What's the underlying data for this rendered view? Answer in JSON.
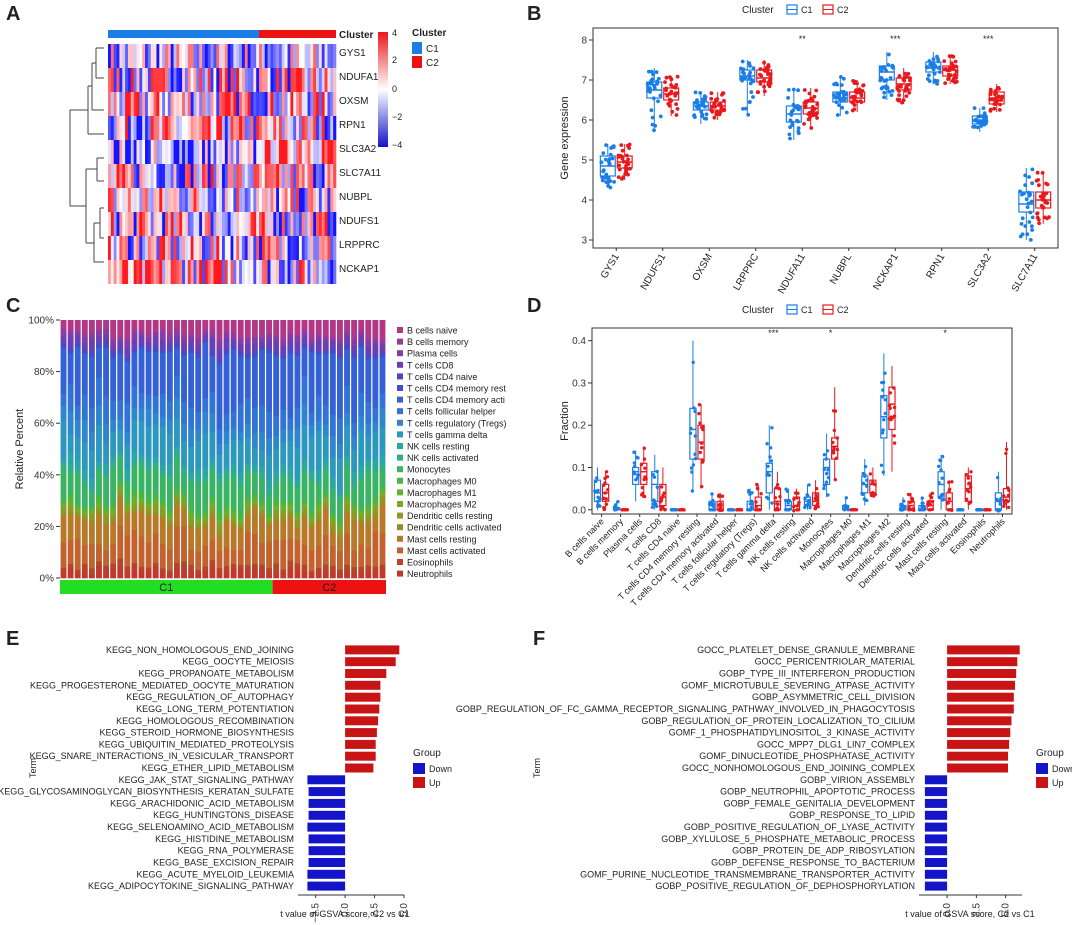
{
  "panels": {
    "A": "A",
    "B": "B",
    "C": "C",
    "D": "D",
    "E": "E",
    "F": "F"
  },
  "colors": {
    "c1": "#1a7ee6",
    "c2": "#e8191d",
    "down": "#1414c8",
    "up": "#c81414",
    "green": "#22dd22",
    "red": "#ee1111"
  },
  "panel_a": {
    "header": "Cluster",
    "genes": [
      "GYS1",
      "NDUFA11",
      "OXSM",
      "RPN1",
      "SLC3A2",
      "SLC7A11",
      "NUBPL",
      "NDUFS1",
      "LRPPRC",
      "NCKAP1"
    ],
    "scale_ticks": [
      "4",
      "2",
      "0",
      "−2",
      "−4"
    ],
    "legend_title": "Cluster",
    "legend_items": [
      "C1",
      "C2"
    ]
  },
  "chart_data": [
    {
      "type": "box",
      "panel": "B",
      "title": "",
      "legend_title": "Cluster",
      "series_names": [
        "C1",
        "C2"
      ],
      "categories": [
        "GYS1",
        "NDUFS1",
        "OXSM",
        "LRPPRC",
        "NDUFA11",
        "NUBPL",
        "NCKAP1",
        "RPN1",
        "SLC3A2",
        "SLC7A11"
      ],
      "ylabel": "Gene expression",
      "ylim": [
        2.8,
        8.3
      ],
      "yticks": [
        "3",
        "4",
        "5",
        "6",
        "7",
        "8"
      ],
      "significance": [
        "",
        "",
        "",
        "",
        "**",
        "",
        "***",
        "",
        "***",
        ""
      ],
      "boxes": {
        "C1": [
          [
            4.6,
            4.85,
            5.1,
            4.3,
            5.4
          ],
          [
            6.55,
            6.75,
            6.95,
            5.7,
            7.3
          ],
          [
            6.25,
            6.35,
            6.45,
            5.9,
            6.7
          ],
          [
            7.0,
            7.1,
            7.25,
            6.1,
            7.5
          ],
          [
            5.95,
            6.15,
            6.35,
            5.5,
            6.8
          ],
          [
            6.45,
            6.55,
            6.7,
            6.1,
            7.1
          ],
          [
            7.0,
            7.2,
            7.35,
            6.5,
            7.7
          ],
          [
            7.2,
            7.3,
            7.45,
            6.9,
            7.7
          ],
          [
            5.9,
            6.0,
            6.1,
            5.7,
            6.3
          ],
          [
            3.7,
            3.9,
            4.2,
            3.0,
            4.8
          ]
        ],
        "C2": [
          [
            4.8,
            4.95,
            5.1,
            4.5,
            5.4
          ],
          [
            6.5,
            6.65,
            6.8,
            6.1,
            7.1
          ],
          [
            6.25,
            6.35,
            6.45,
            6.0,
            6.7
          ],
          [
            6.95,
            7.05,
            7.25,
            6.6,
            7.5
          ],
          [
            6.15,
            6.3,
            6.45,
            5.8,
            6.8
          ],
          [
            6.45,
            6.55,
            6.7,
            6.2,
            7.0
          ],
          [
            6.75,
            6.9,
            7.05,
            6.4,
            7.3
          ],
          [
            7.1,
            7.25,
            7.35,
            6.9,
            7.6
          ],
          [
            6.4,
            6.55,
            6.7,
            6.2,
            6.9
          ],
          [
            3.8,
            4.0,
            4.2,
            3.4,
            4.7
          ]
        ]
      }
    },
    {
      "type": "stacked-bar",
      "panel": "C",
      "ylabel": "Relative Percent",
      "yticks": [
        "0%",
        "20%",
        "40%",
        "60%",
        "80%",
        "100%"
      ],
      "groups": [
        {
          "name": "C1",
          "count": 30
        },
        {
          "name": "C2",
          "count": 16
        }
      ],
      "cell_types": [
        "B cells naive",
        "B cells memory",
        "Plasma cells",
        "T cells CD8",
        "T cells CD4 naive",
        "T cells CD4 memory rest",
        "T cells CD4 memory acti",
        "T cells follicular helper",
        "T cells regulatory (Tregs)",
        "T cells gamma delta",
        "NK cells resting",
        "NK cells activated",
        "Monocytes",
        "Macrophages M0",
        "Macrophages M1",
        "Macrophages M2",
        "Dendritic cells resting",
        "Dendritic cells activated",
        "Mast cells resting",
        "Mast cells activated",
        "Eosinophils",
        "Neutrophils"
      ],
      "mean_percent": [
        3,
        2,
        10,
        8,
        1,
        2,
        1,
        1,
        2,
        9,
        2,
        3,
        11,
        6,
        8,
        18,
        1,
        1,
        3,
        2,
        1,
        5
      ],
      "type_colors": [
        "#c0392b",
        "#b5452a",
        "#c2622e",
        "#b87a2a",
        "#9c8a26",
        "#8c9a25",
        "#7aa82a",
        "#66b22e",
        "#4cb440",
        "#3bb364",
        "#32ae86",
        "#2ea5a5",
        "#2e97bd",
        "#2f86cc",
        "#3174d6",
        "#3561d6",
        "#3f4ecc",
        "#5245c0",
        "#6a3fb3",
        "#863ba6",
        "#9d3a97",
        "#b23887"
      ]
    },
    {
      "type": "box",
      "panel": "D",
      "legend_title": "Cluster",
      "series_names": [
        "C1",
        "C2"
      ],
      "ylabel": "Fraction",
      "ylim": [
        -0.01,
        0.43
      ],
      "yticks": [
        "0.0",
        "0.1",
        "0.2",
        "0.3",
        "0.4"
      ],
      "categories": [
        "B cells naive",
        "B cells memory",
        "Plasma cells",
        "T cells CD8",
        "T cells CD4 naive",
        "T cells CD4 memory resting",
        "T cells CD4 memory activated",
        "T cells follicular helper",
        "T cells regulatory (Tregs)",
        "T cells gamma delta",
        "NK cells resting",
        "NK cells activated",
        "Monocytes",
        "Macrophages M0",
        "Macrophages M1",
        "Macrophages M2",
        "Dendritic cells resting",
        "Dendritic cells activated",
        "Mast cells resting",
        "Mast cells activated",
        "Eosinophils",
        "Neutrophils"
      ],
      "significance": [
        "",
        "",
        "",
        "",
        "",
        "",
        "",
        "",
        "",
        "***",
        "",
        "",
        "*",
        "",
        "",
        "",
        "",
        "",
        "*",
        "",
        "",
        ""
      ],
      "boxes": {
        "C1": [
          [
            0.02,
            0.04,
            0.07,
            0.0,
            0.1
          ],
          [
            0.0,
            0.0,
            0.005,
            0.0,
            0.02
          ],
          [
            0.06,
            0.09,
            0.1,
            0.02,
            0.14
          ],
          [
            0.02,
            0.06,
            0.09,
            0.0,
            0.13
          ],
          [
            0.0,
            0.0,
            0.0,
            0.0,
            0.0
          ],
          [
            0.12,
            0.19,
            0.24,
            0.04,
            0.4
          ],
          [
            0.0,
            0.01,
            0.02,
            0.0,
            0.04
          ],
          [
            0.0,
            0.0,
            0.0,
            0.0,
            0.0
          ],
          [
            0.0,
            0.0,
            0.02,
            0.0,
            0.05
          ],
          [
            0.04,
            0.09,
            0.11,
            0.0,
            0.2
          ],
          [
            0.0,
            0.01,
            0.02,
            0.0,
            0.05
          ],
          [
            0.01,
            0.02,
            0.03,
            0.0,
            0.06
          ],
          [
            0.06,
            0.1,
            0.12,
            0.03,
            0.18
          ],
          [
            0.0,
            0.0,
            0.01,
            0.0,
            0.03
          ],
          [
            0.04,
            0.06,
            0.08,
            0.01,
            0.12
          ],
          [
            0.17,
            0.22,
            0.27,
            0.08,
            0.37
          ],
          [
            0.0,
            0.0,
            0.01,
            0.0,
            0.03
          ],
          [
            0.0,
            0.0,
            0.01,
            0.0,
            0.03
          ],
          [
            0.03,
            0.06,
            0.09,
            0.0,
            0.13
          ],
          [
            0.0,
            0.0,
            0.0,
            0.0,
            0.0
          ],
          [
            0.0,
            0.0,
            0.0,
            0.0,
            0.0
          ],
          [
            0.0,
            0.02,
            0.04,
            0.0,
            0.09
          ]
        ],
        "C2": [
          [
            0.02,
            0.04,
            0.06,
            0.0,
            0.09
          ],
          [
            0.0,
            0.0,
            0.0,
            0.0,
            0.0
          ],
          [
            0.06,
            0.09,
            0.11,
            0.03,
            0.15
          ],
          [
            0.01,
            0.03,
            0.06,
            0.0,
            0.1
          ],
          [
            0.0,
            0.0,
            0.0,
            0.0,
            0.0
          ],
          [
            0.12,
            0.16,
            0.2,
            0.05,
            0.25
          ],
          [
            0.0,
            0.01,
            0.02,
            0.0,
            0.04
          ],
          [
            0.0,
            0.0,
            0.0,
            0.0,
            0.0
          ],
          [
            0.0,
            0.01,
            0.03,
            0.0,
            0.06
          ],
          [
            0.0,
            0.02,
            0.05,
            0.0,
            0.09
          ],
          [
            0.0,
            0.01,
            0.03,
            0.0,
            0.05
          ],
          [
            0.01,
            0.02,
            0.04,
            0.0,
            0.07
          ],
          [
            0.12,
            0.15,
            0.17,
            0.07,
            0.29
          ],
          [
            0.0,
            0.0,
            0.0,
            0.0,
            0.0
          ],
          [
            0.04,
            0.06,
            0.07,
            0.03,
            0.1
          ],
          [
            0.19,
            0.25,
            0.29,
            0.09,
            0.34
          ],
          [
            0.0,
            0.01,
            0.02,
            0.0,
            0.04
          ],
          [
            0.0,
            0.01,
            0.02,
            0.0,
            0.04
          ],
          [
            0.0,
            0.02,
            0.04,
            0.0,
            0.07
          ],
          [
            0.02,
            0.05,
            0.08,
            0.0,
            0.1
          ],
          [
            0.0,
            0.0,
            0.0,
            0.0,
            0.0
          ],
          [
            0.02,
            0.03,
            0.05,
            0.0,
            0.16
          ]
        ]
      }
    },
    {
      "type": "bar-horizontal",
      "panel": "E",
      "xlabel": "t value of GSVA score, C2 vs C1",
      "ylabel": "Term",
      "xlim": [
        -4,
        5
      ],
      "xticks": [
        -2.5,
        0.0,
        2.5,
        5.0
      ],
      "xtick_labels": [
        "−2.5",
        "0.0",
        "2.5",
        "5.0"
      ],
      "legend_title": "Group",
      "legend_items": [
        "Down",
        "Up"
      ],
      "terms": [
        "KEGG_NON_HOMOLOGOUS_END_JOINING",
        "KEGG_OOCYTE_MEIOSIS",
        "KEGG_PROPANOATE_METABOLISM",
        "KEGG_PROGESTERONE_MEDIATED_OOCYTE_MATURATION",
        "KEGG_REGULATION_OF_AUTOPHAGY",
        "KEGG_LONG_TERM_POTENTIATION",
        "KEGG_HOMOLOGOUS_RECOMBINATION",
        "KEGG_STEROID_HORMONE_BIOSYNTHESIS",
        "KEGG_UBIQUITIN_MEDIATED_PROTEOLYSIS",
        "KEGG_SNARE_INTERACTIONS_IN_VESICULAR_TRANSPORT",
        "KEGG_ETHER_LIPID_METABOLISM",
        "KEGG_JAK_STAT_SIGNALING_PATHWAY",
        "KEGG_GLYCOSAMINOGLYCAN_BIOSYNTHESIS_KERATAN_SULFATE",
        "KEGG_ARACHIDONIC_ACID_METABOLISM",
        "KEGG_HUNTINGTONS_DISEASE",
        "KEGG_SELENOAMINO_ACID_METABOLISM",
        "KEGG_HISTIDINE_METABOLISM",
        "KEGG_RNA_POLYMERASE",
        "KEGG_BASE_EXCISION_REPAIR",
        "KEGG_ACUTE_MYELOID_LEUKEMIA",
        "KEGG_ADIPOCYTOKINE_SIGNALING_PATHWAY"
      ],
      "values": [
        4.6,
        4.3,
        3.5,
        3.0,
        3.0,
        2.9,
        2.8,
        2.7,
        2.6,
        2.6,
        2.4,
        -3.2,
        -3.1,
        -3.1,
        -3.1,
        -3.2,
        -3.1,
        -3.1,
        -3.1,
        -3.2,
        -3.2
      ]
    },
    {
      "type": "bar-horizontal",
      "panel": "F",
      "xlabel": "t value of GSVA score, C2 vs C1",
      "ylabel": "Term",
      "xlim": [
        -2.4,
        6.4
      ],
      "xticks": [
        0.0,
        2.5,
        5.0
      ],
      "xtick_labels": [
        "0.0",
        "2.5",
        "5.0"
      ],
      "legend_title": "Group",
      "legend_items": [
        "Down",
        "Up"
      ],
      "terms": [
        "GOCC_PLATELET_DENSE_GRANULE_MEMBRANE",
        "GOCC_PERICENTRIOLAR_MATERIAL",
        "GOBP_TYPE_III_INTERFERON_PRODUCTION",
        "GOMF_MICROTUBULE_SEVERING_ATPASE_ACTIVITY",
        "GOBP_ASYMMETRIC_CELL_DIVISION",
        "GOBP_REGULATION_OF_FC_GAMMA_RECEPTOR_SIGNALING_PATHWAY_INVOLVED_IN_PHAGOCYTOSIS",
        "GOBP_REGULATION_OF_PROTEIN_LOCALIZATION_TO_CILIUM",
        "GOMF_1_PHOSPHATIDYLINOSITOL_3_KINASE_ACTIVITY",
        "GOCC_MPP7_DLG1_LIN7_COMPLEX",
        "GOMF_DINUCLEOTIDE_PHOSPHATASE_ACTIVITY",
        "GOCC_NONHOMOLOGOUS_END_JOINING_COMPLEX",
        "GOBP_VIRION_ASSEMBLY",
        "GOBP_NEUTROPHIL_APOPTOTIC_PROCESS",
        "GOBP_FEMALE_GENITALIA_DEVELOPMENT",
        "GOBP_RESPONSE_TO_LIPID",
        "GOBP_POSITIVE_REGULATION_OF_LYASE_ACTIVITY",
        "GOBP_XYLULOSE_5_PHOSPHATE_METABOLIC_PROCESS",
        "GOBP_PROTEIN_DE_ADP_RIBOSYLATION",
        "GOBP_DEFENSE_RESPONSE_TO_BACTERIUM",
        "GOMF_PURINE_NUCLEOTIDE_TRANSMEMBRANE_TRANSPORTER_ACTIVITY",
        "GOBP_POSITIVE_REGULATION_OF_DEPHOSPHORYLATION"
      ],
      "values": [
        6.2,
        6.0,
        5.9,
        5.8,
        5.7,
        5.7,
        5.5,
        5.4,
        5.3,
        5.2,
        5.2,
        -1.9,
        -1.9,
        -1.9,
        -1.9,
        -1.9,
        -1.9,
        -1.9,
        -1.9,
        -1.9,
        -1.9
      ]
    }
  ]
}
